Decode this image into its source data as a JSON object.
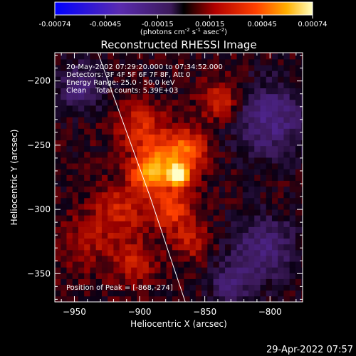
{
  "chart_data": {
    "type": "heatmap",
    "title": "Reconstructed RHESSI Image",
    "xlabel": "Heliocentric X (arcsec)",
    "ylabel": "Heliocentric Y (arcsec)",
    "xlim": [
      -965,
      -775
    ],
    "ylim": [
      -372,
      -178
    ],
    "x_ticks": [
      -950,
      -900,
      -850,
      -800
    ],
    "y_ticks": [
      -200,
      -250,
      -300,
      -350
    ],
    "colorbar": {
      "min": -0.00074,
      "max": 0.00074,
      "ticks": [
        "-0.00074",
        "-0.00045",
        "-0.00015",
        "0.00015",
        "0.00045",
        "0.00074"
      ],
      "tick_values": [
        -0.00074,
        -0.00045,
        -0.00015,
        0.00015,
        0.00045,
        0.00074
      ],
      "unit_label": "(photons cm",
      "unit_exp1": "-2",
      "unit_mid": " s",
      "unit_exp2": "-1",
      "unit_mid2": " asec",
      "unit_exp3": "-2",
      "unit_end": ")"
    },
    "info": [
      "20-May-2002 07:29:20.000 to 07:34:52.000",
      "Detectors: 3F 4F 5F 6F 7F 8F, Att 0",
      "Energy Range: 25.0 - 50.0 keV",
      "Clean    Total counts: 5.39E+03"
    ],
    "peak_label": "Position of Peak = [-868,-274]",
    "peak": {
      "x": -868,
      "y": -274
    },
    "limb_line": [
      [
        -932,
        -178
      ],
      [
        -892,
        -290
      ],
      [
        -865,
        -372
      ]
    ],
    "sources": [
      {
        "x": -870,
        "y": -273,
        "amp": 0.00074,
        "sigma": 5
      },
      {
        "x": -880,
        "y": -262,
        "amp": 0.00035,
        "sigma": 14
      },
      {
        "x": -893,
        "y": -272,
        "amp": 0.00035,
        "sigma": 9
      },
      {
        "x": -876,
        "y": -300,
        "amp": 0.00028,
        "sigma": 11
      },
      {
        "x": -862,
        "y": -252,
        "amp": 0.00025,
        "sigma": 10
      },
      {
        "x": -900,
        "y": -235,
        "amp": 0.0002,
        "sigma": 13
      },
      {
        "x": -915,
        "y": -300,
        "amp": 0.0002,
        "sigma": 14
      },
      {
        "x": -838,
        "y": -215,
        "amp": 0.00022,
        "sigma": 11
      },
      {
        "x": -905,
        "y": -340,
        "amp": 0.00018,
        "sigma": 12
      },
      {
        "x": -860,
        "y": -325,
        "amp": 0.00017,
        "sigma": 10
      },
      {
        "x": -940,
        "y": -325,
        "amp": 0.00012,
        "sigma": 14
      },
      {
        "x": -945,
        "y": -205,
        "amp": -0.00022,
        "sigma": 13
      },
      {
        "x": -800,
        "y": -230,
        "amp": -0.00025,
        "sigma": 20
      },
      {
        "x": -805,
        "y": -330,
        "amp": -0.00022,
        "sigma": 18
      },
      {
        "x": -830,
        "y": -360,
        "amp": -0.00018,
        "sigma": 12
      }
    ]
  },
  "footer": {
    "timestamp": "29-Apr-2022 07:57"
  }
}
